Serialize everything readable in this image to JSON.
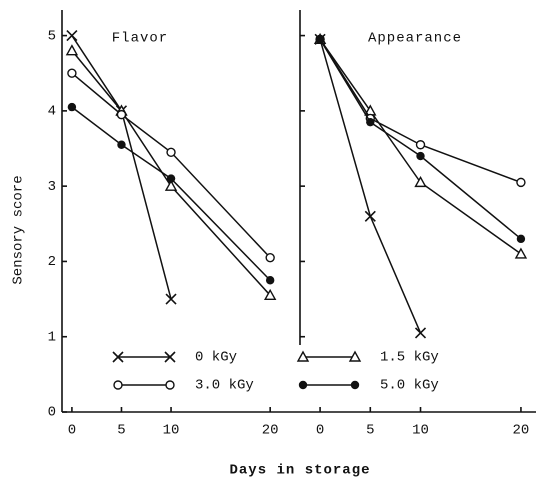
{
  "y_label": "Sensory score",
  "x_label": "Days in storage",
  "chart_data": [
    {
      "type": "line",
      "title": "Flavor",
      "x": [
        0,
        5,
        10,
        20
      ],
      "xlim": [
        -1,
        22
      ],
      "xticks": [
        0,
        5,
        10,
        20
      ],
      "ylim": [
        0,
        5.3
      ],
      "yticks": [
        0,
        1,
        2,
        3,
        4,
        5
      ],
      "show_ytick_labels": true,
      "series": [
        {
          "name": "0 kGy",
          "marker": "x",
          "color": "#111111",
          "values": [
            5.0,
            4.0,
            1.5,
            null
          ]
        },
        {
          "name": "1.5 kGy",
          "marker": "triangle",
          "color": "#111111",
          "values": [
            4.8,
            4.0,
            3.0,
            1.55
          ]
        },
        {
          "name": "3.0 kGy",
          "marker": "open-circle",
          "color": "#111111",
          "values": [
            4.5,
            3.95,
            3.45,
            2.05
          ]
        },
        {
          "name": "5.0 kGy",
          "marker": "filled-circle",
          "color": "#111111",
          "values": [
            4.05,
            3.55,
            3.1,
            1.75
          ]
        }
      ]
    },
    {
      "type": "line",
      "title": "Appearance",
      "x": [
        0,
        5,
        10,
        20
      ],
      "xlim": [
        -2,
        21.5
      ],
      "xticks": [
        0,
        5,
        10,
        20
      ],
      "ylim": [
        0,
        5.3
      ],
      "yticks": [
        1,
        2,
        3,
        4,
        5
      ],
      "show_ytick_labels": false,
      "series": [
        {
          "marker": "x",
          "color": "#111111",
          "values": [
            4.95,
            2.6,
            1.05,
            null
          ]
        },
        {
          "marker": "triangle",
          "color": "#111111",
          "values": [
            4.95,
            4.0,
            3.05,
            2.1
          ]
        },
        {
          "marker": "open-circle",
          "color": "#111111",
          "values": [
            4.95,
            3.9,
            3.55,
            3.05
          ]
        },
        {
          "marker": "filled-circle",
          "color": "#111111",
          "values": [
            4.95,
            3.85,
            3.4,
            2.3
          ]
        }
      ]
    }
  ]
}
